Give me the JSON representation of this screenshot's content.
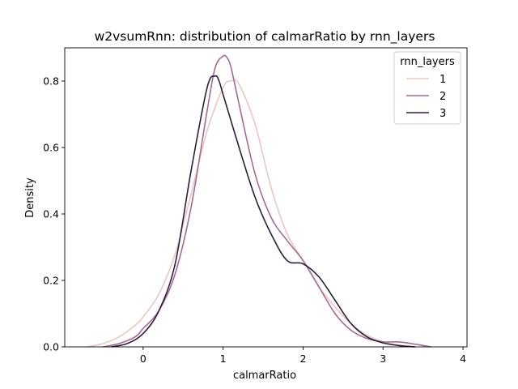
{
  "chart_data": {
    "type": "line",
    "title": "w2vsumRnn: distribution of calmarRatio by rnn_layers",
    "xlabel": "calmarRatio",
    "ylabel": "Density",
    "xlim": [
      -0.98,
      4.05
    ],
    "ylim": [
      0,
      0.9
    ],
    "xticks": [
      "0",
      "1",
      "2",
      "3",
      "4"
    ],
    "yticks": [
      "0.0",
      "0.2",
      "0.4",
      "0.6",
      "0.8"
    ],
    "grid": false,
    "legend": {
      "title": "rnn_layers",
      "position": "top-right"
    },
    "series": [
      {
        "name": "1",
        "color": "#ebc7c0",
        "x": [
          -0.7,
          -0.5,
          -0.3,
          -0.1,
          0.0,
          0.2,
          0.4,
          0.6,
          0.8,
          1.0,
          1.1,
          1.2,
          1.4,
          1.6,
          1.8,
          2.0,
          2.2,
          2.4,
          2.6,
          2.8,
          3.0,
          3.2,
          3.4
        ],
        "y": [
          0.0,
          0.01,
          0.03,
          0.065,
          0.09,
          0.16,
          0.28,
          0.46,
          0.65,
          0.78,
          0.8,
          0.79,
          0.67,
          0.48,
          0.34,
          0.26,
          0.18,
          0.12,
          0.07,
          0.035,
          0.015,
          0.005,
          0.0
        ]
      },
      {
        "name": "2",
        "color": "#a86a93",
        "x": [
          -0.5,
          -0.3,
          -0.1,
          0.0,
          0.2,
          0.4,
          0.6,
          0.8,
          0.9,
          1.0,
          1.05,
          1.1,
          1.2,
          1.4,
          1.6,
          1.8,
          2.0,
          2.2,
          2.4,
          2.6,
          2.8,
          3.0,
          3.2,
          3.4,
          3.6
        ],
        "y": [
          0.0,
          0.01,
          0.03,
          0.055,
          0.11,
          0.22,
          0.42,
          0.71,
          0.84,
          0.875,
          0.87,
          0.84,
          0.73,
          0.52,
          0.39,
          0.32,
          0.26,
          0.18,
          0.1,
          0.05,
          0.025,
          0.015,
          0.015,
          0.008,
          0.0
        ]
      },
      {
        "name": "3",
        "color": "#2d1e3e",
        "x": [
          -0.4,
          -0.2,
          0.0,
          0.2,
          0.4,
          0.6,
          0.8,
          0.9,
          0.95,
          1.0,
          1.2,
          1.4,
          1.6,
          1.8,
          2.0,
          2.2,
          2.4,
          2.6,
          2.8,
          3.0,
          3.2,
          3.4
        ],
        "y": [
          0.0,
          0.01,
          0.04,
          0.11,
          0.25,
          0.53,
          0.78,
          0.815,
          0.8,
          0.76,
          0.6,
          0.45,
          0.34,
          0.26,
          0.25,
          0.21,
          0.14,
          0.07,
          0.03,
          0.012,
          0.004,
          0.0
        ]
      }
    ]
  }
}
